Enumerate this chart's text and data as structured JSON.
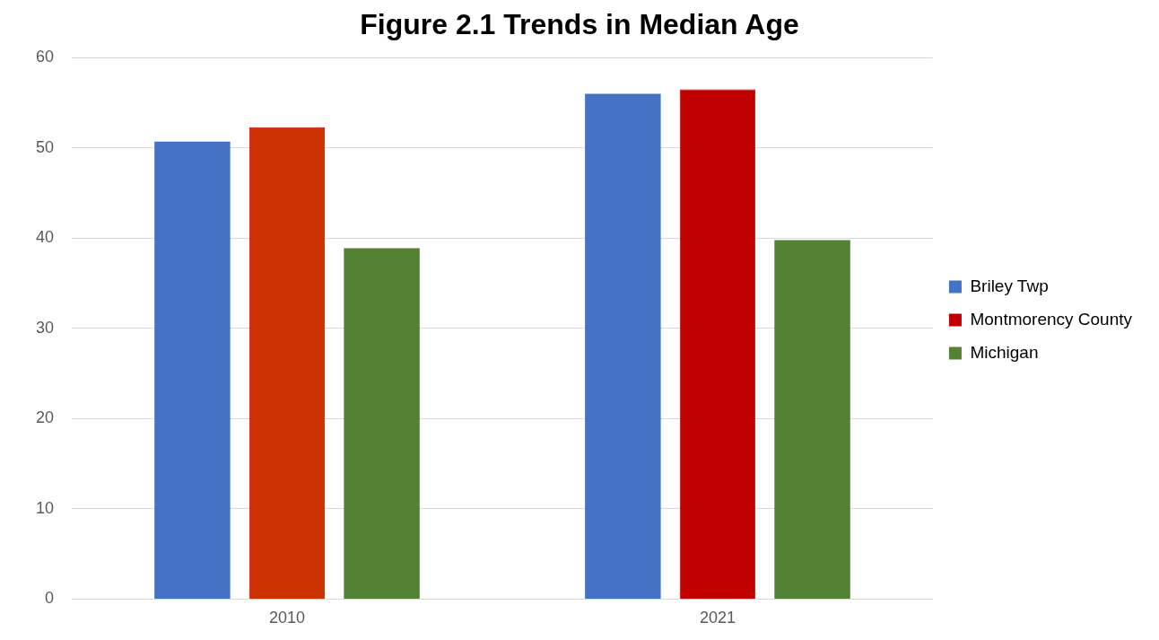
{
  "chart_data": {
    "type": "bar",
    "title": "Figure 2.1 Trends in Median Age",
    "categories": [
      "2010",
      "2021"
    ],
    "series": [
      {
        "name": "Briley Twp",
        "color": "#4472c4",
        "values": [
          50.7,
          56.0
        ]
      },
      {
        "name": "Montmorency County",
        "color": "#c00000",
        "colors": [
          "#cc3300",
          "#c00000"
        ],
        "values": [
          52.3,
          56.5
        ]
      },
      {
        "name": "Michigan",
        "color": "#548235",
        "values": [
          38.9,
          39.8
        ]
      }
    ],
    "ylim": [
      0,
      60
    ],
    "yticks": [
      0,
      10,
      20,
      30,
      40,
      50,
      60
    ],
    "grid": "y",
    "legend": "right"
  }
}
